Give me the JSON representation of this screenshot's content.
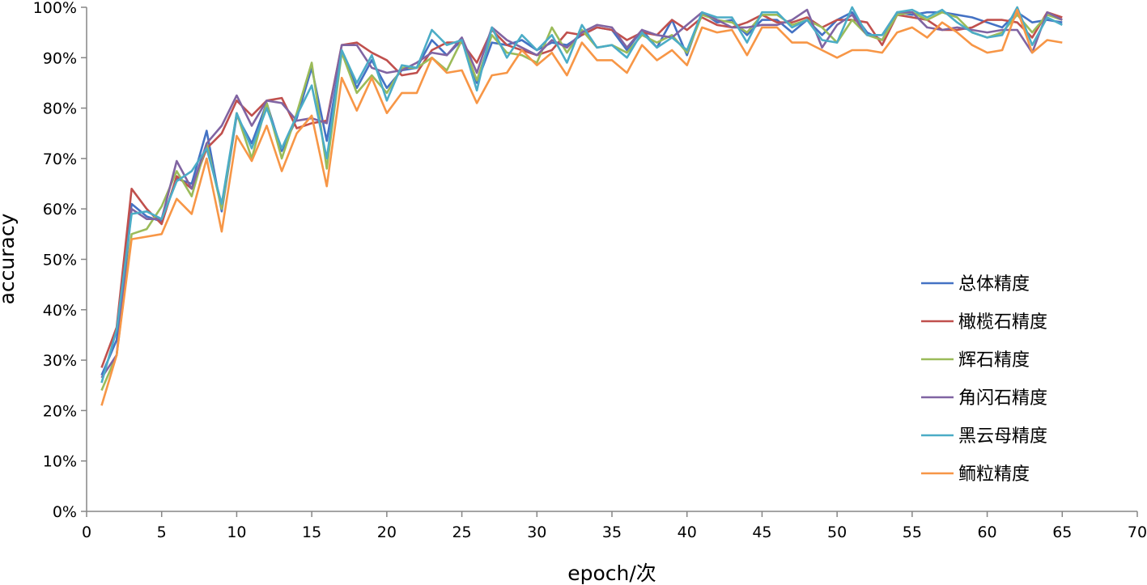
{
  "chart_data": {
    "type": "line",
    "xlabel": "epoch/次",
    "ylabel": "accuracy",
    "xlim": [
      0,
      70
    ],
    "ylim": [
      0,
      1
    ],
    "x_ticks": [
      0,
      5,
      10,
      15,
      20,
      25,
      30,
      35,
      40,
      45,
      50,
      55,
      60,
      65,
      70
    ],
    "y_ticks": [
      0,
      0.1,
      0.2,
      0.3,
      0.4,
      0.5,
      0.6,
      0.7,
      0.8,
      0.9,
      1.0
    ],
    "x_tick_labels": [
      "0",
      "5",
      "10",
      "15",
      "20",
      "25",
      "30",
      "35",
      "40",
      "45",
      "50",
      "55",
      "60",
      "65",
      "70"
    ],
    "y_tick_labels": [
      "0%",
      "10%",
      "20%",
      "30%",
      "40%",
      "50%",
      "60%",
      "70%",
      "80%",
      "90%",
      "100%"
    ],
    "grid": false,
    "legend_position": "lower-right",
    "x": [
      1,
      2,
      3,
      4,
      5,
      6,
      7,
      8,
      9,
      10,
      11,
      12,
      13,
      14,
      15,
      16,
      17,
      18,
      19,
      20,
      21,
      22,
      23,
      24,
      25,
      26,
      27,
      28,
      29,
      30,
      31,
      32,
      33,
      34,
      35,
      36,
      37,
      38,
      39,
      40,
      41,
      42,
      43,
      44,
      45,
      46,
      47,
      48,
      49,
      50,
      51,
      52,
      53,
      54,
      55,
      56,
      57,
      58,
      59,
      60,
      61,
      62,
      63,
      64,
      65
    ],
    "series": [
      {
        "name": "总体精度",
        "color": "#4472c4",
        "values": [
          0.27,
          0.34,
          0.61,
          0.585,
          0.575,
          0.66,
          0.65,
          0.755,
          0.595,
          0.785,
          0.73,
          0.81,
          0.715,
          0.78,
          0.88,
          0.735,
          0.91,
          0.84,
          0.895,
          0.84,
          0.875,
          0.88,
          0.935,
          0.905,
          0.935,
          0.85,
          0.93,
          0.925,
          0.935,
          0.915,
          0.93,
          0.925,
          0.945,
          0.96,
          0.955,
          0.915,
          0.955,
          0.92,
          0.975,
          0.905,
          0.99,
          0.97,
          0.975,
          0.945,
          0.975,
          0.975,
          0.95,
          0.975,
          0.945,
          0.975,
          0.99,
          0.95,
          0.935,
          0.99,
          0.985,
          0.99,
          0.99,
          0.985,
          0.98,
          0.97,
          0.96,
          0.99,
          0.97,
          0.975,
          0.97
        ]
      },
      {
        "name": "橄榄石精度",
        "color": "#c0504d",
        "values": [
          0.285,
          0.365,
          0.64,
          0.6,
          0.57,
          0.665,
          0.64,
          0.72,
          0.75,
          0.815,
          0.785,
          0.815,
          0.82,
          0.76,
          0.77,
          0.775,
          0.925,
          0.93,
          0.91,
          0.895,
          0.865,
          0.87,
          0.915,
          0.93,
          0.93,
          0.89,
          0.955,
          0.925,
          0.915,
          0.905,
          0.915,
          0.95,
          0.945,
          0.96,
          0.955,
          0.935,
          0.95,
          0.945,
          0.975,
          0.955,
          0.98,
          0.965,
          0.96,
          0.97,
          0.985,
          0.97,
          0.97,
          0.98,
          0.96,
          0.975,
          0.975,
          0.97,
          0.925,
          0.985,
          0.98,
          0.975,
          0.955,
          0.955,
          0.96,
          0.975,
          0.975,
          0.97,
          0.94,
          0.99,
          0.98
        ]
      },
      {
        "name": "辉石精度",
        "color": "#9bbb59",
        "values": [
          0.24,
          0.31,
          0.55,
          0.56,
          0.605,
          0.675,
          0.625,
          0.73,
          0.6,
          0.79,
          0.7,
          0.81,
          0.7,
          0.79,
          0.89,
          0.68,
          0.91,
          0.83,
          0.865,
          0.83,
          0.88,
          0.88,
          0.9,
          0.875,
          0.935,
          0.855,
          0.945,
          0.91,
          0.905,
          0.89,
          0.96,
          0.91,
          0.955,
          0.92,
          0.925,
          0.91,
          0.945,
          0.93,
          0.945,
          0.91,
          0.985,
          0.975,
          0.97,
          0.95,
          0.985,
          0.985,
          0.965,
          0.975,
          0.96,
          0.93,
          0.975,
          0.945,
          0.935,
          0.985,
          0.99,
          0.975,
          0.99,
          0.98,
          0.95,
          0.94,
          0.95,
          0.985,
          0.95,
          0.985,
          0.975
        ]
      },
      {
        "name": "角闪石精度",
        "color": "#8064a2",
        "values": [
          0.265,
          0.31,
          0.6,
          0.58,
          0.58,
          0.695,
          0.64,
          0.73,
          0.765,
          0.825,
          0.765,
          0.815,
          0.81,
          0.775,
          0.78,
          0.77,
          0.925,
          0.925,
          0.88,
          0.87,
          0.875,
          0.89,
          0.91,
          0.905,
          0.94,
          0.87,
          0.96,
          0.935,
          0.92,
          0.905,
          0.935,
          0.92,
          0.95,
          0.965,
          0.96,
          0.92,
          0.955,
          0.945,
          0.94,
          0.965,
          0.99,
          0.975,
          0.96,
          0.96,
          0.965,
          0.965,
          0.975,
          0.995,
          0.92,
          0.965,
          0.985,
          0.945,
          0.945,
          0.99,
          0.99,
          0.96,
          0.955,
          0.96,
          0.955,
          0.95,
          0.955,
          0.955,
          0.91,
          0.99,
          0.975
        ]
      },
      {
        "name": "黑云母精度",
        "color": "#4bacc6",
        "values": [
          0.255,
          0.36,
          0.59,
          0.595,
          0.58,
          0.655,
          0.675,
          0.72,
          0.61,
          0.79,
          0.72,
          0.8,
          0.72,
          0.785,
          0.845,
          0.7,
          0.915,
          0.85,
          0.905,
          0.815,
          0.885,
          0.88,
          0.955,
          0.925,
          0.935,
          0.835,
          0.96,
          0.9,
          0.945,
          0.915,
          0.945,
          0.89,
          0.965,
          0.92,
          0.925,
          0.9,
          0.95,
          0.92,
          0.94,
          0.915,
          0.99,
          0.98,
          0.98,
          0.93,
          0.99,
          0.99,
          0.96,
          0.975,
          0.935,
          0.93,
          1.0,
          0.945,
          0.945,
          0.99,
          0.995,
          0.98,
          0.995,
          0.97,
          0.95,
          0.94,
          0.945,
          1.0,
          0.925,
          0.98,
          0.965
        ]
      },
      {
        "name": "鲕粒精度",
        "color": "#f79646",
        "values": [
          0.21,
          0.31,
          0.54,
          0.545,
          0.55,
          0.62,
          0.59,
          0.7,
          0.555,
          0.745,
          0.695,
          0.765,
          0.675,
          0.75,
          0.785,
          0.645,
          0.86,
          0.795,
          0.86,
          0.79,
          0.83,
          0.83,
          0.9,
          0.87,
          0.875,
          0.81,
          0.865,
          0.87,
          0.915,
          0.885,
          0.91,
          0.865,
          0.93,
          0.895,
          0.895,
          0.87,
          0.925,
          0.895,
          0.915,
          0.885,
          0.96,
          0.95,
          0.955,
          0.905,
          0.96,
          0.96,
          0.93,
          0.93,
          0.915,
          0.9,
          0.915,
          0.915,
          0.91,
          0.95,
          0.96,
          0.94,
          0.97,
          0.95,
          0.925,
          0.91,
          0.915,
          0.995,
          0.91,
          0.935,
          0.93
        ]
      }
    ]
  }
}
